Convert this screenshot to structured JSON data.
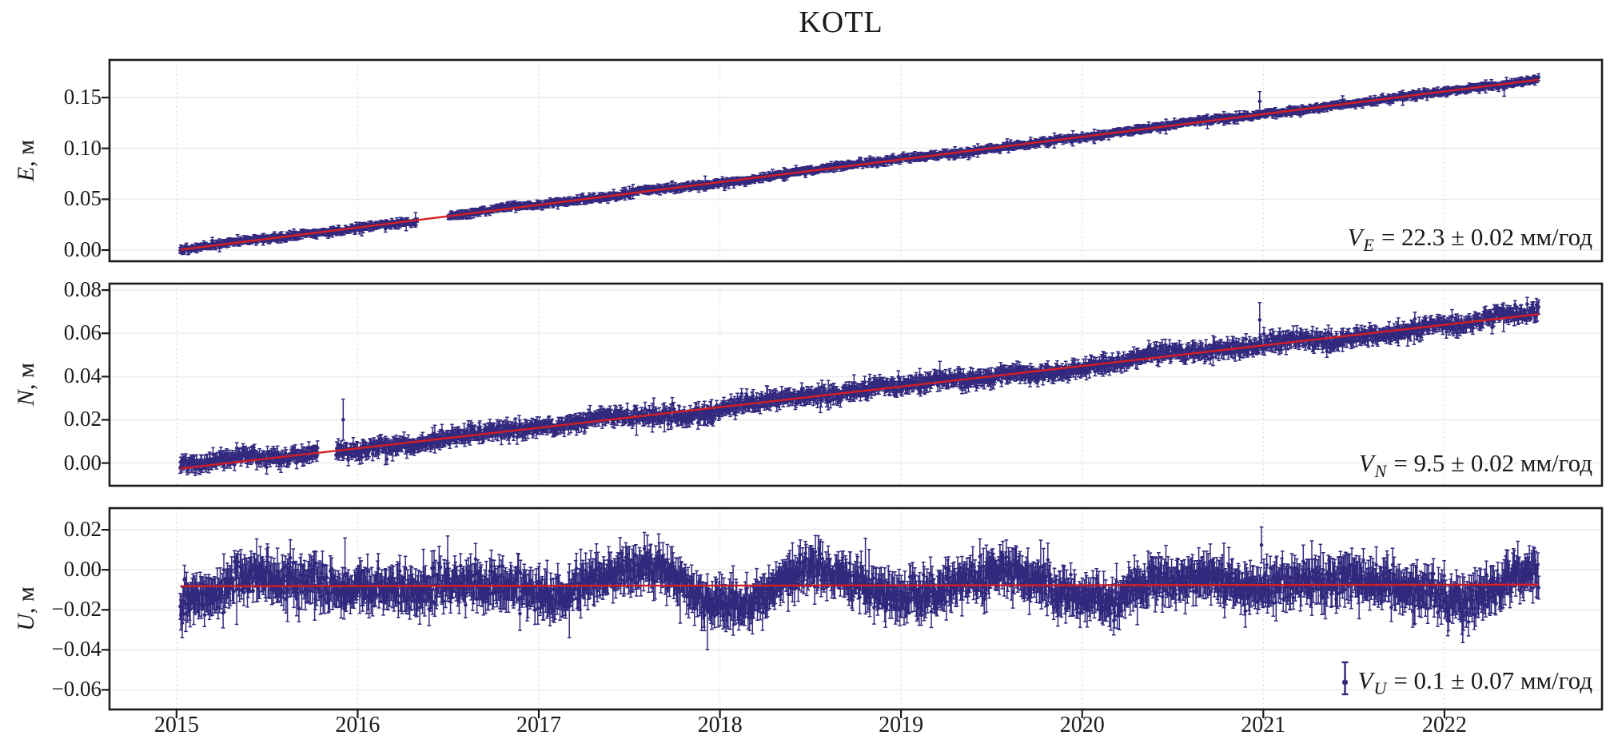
{
  "title": "KOTL",
  "colors": {
    "point": "#32297e",
    "trend": "#d51d22",
    "grid_h": "#ececec",
    "grid_v": "#dedede",
    "axis": "#1b1b1b",
    "text": "#1a1a1a"
  },
  "x_axis": {
    "xlim": [
      2014.63,
      2022.87
    ],
    "ticks": [
      2015,
      2016,
      2017,
      2018,
      2019,
      2020,
      2021,
      2022
    ],
    "tick_labels": [
      "2015",
      "2016",
      "2017",
      "2018",
      "2019",
      "2020",
      "2021",
      "2022"
    ],
    "data_start": 2015.02,
    "data_end": 2022.52,
    "n_points": 1900
  },
  "chart_data": [
    {
      "type": "scatter",
      "name": "E",
      "ylabel_var": "E",
      "ylabel_rest": ", м",
      "ylim": [
        -0.011,
        0.187
      ],
      "yticks": [
        0.0,
        0.05,
        0.1,
        0.15
      ],
      "ytick_labels": [
        "0.00",
        "0.05",
        "0.10",
        "0.15"
      ],
      "annotation": {
        "var": "V",
        "sub": "E",
        "rest": "= 22.3 ± 0.02 мм/год"
      },
      "velocity_mm_per_yr": 22.3,
      "velocity_err_mm_per_yr": 0.02,
      "trend": {
        "t0": 2015.02,
        "v0": 0.0003,
        "t1": 2022.52,
        "v1": 0.1676
      },
      "noise_sd": 0.0013,
      "wander_amp": 0.0013,
      "seasonal_amp": 0.0007,
      "seasonal_phase": 0.45,
      "error_bar": 0.0028,
      "gaps": [
        [
          2016.33,
          2016.5
        ]
      ],
      "outliers": [
        {
          "t": 2020.98,
          "v_off": 0.013,
          "err": 0.0095
        },
        {
          "t": 2022.33,
          "v_off": -0.0045,
          "err": 0.0075
        }
      ],
      "seed": 101,
      "legend_marker": false
    },
    {
      "type": "scatter",
      "name": "N",
      "ylabel_var": "N",
      "ylabel_rest": ", м",
      "ylim": [
        -0.0105,
        0.083
      ],
      "yticks": [
        0.0,
        0.02,
        0.04,
        0.06,
        0.08
      ],
      "ytick_labels": [
        "0.00",
        "0.02",
        "0.04",
        "0.06",
        "0.08"
      ],
      "annotation": {
        "var": "V",
        "sub": "N",
        "rest": "= 9.5 ± 0.02 мм/год"
      },
      "velocity_mm_per_yr": 9.5,
      "velocity_err_mm_per_yr": 0.02,
      "trend": {
        "t0": 2015.02,
        "v0": -0.0025,
        "t1": 2022.52,
        "v1": 0.0689
      },
      "noise_sd": 0.0016,
      "wander_amp": 0.002,
      "seasonal_amp": 0.0009,
      "seasonal_phase": 0.1,
      "error_bar": 0.0026,
      "gaps": [
        [
          2015.78,
          2015.88
        ]
      ],
      "outliers": [
        {
          "t": 2015.92,
          "v_off": 0.014,
          "err": 0.0095
        },
        {
          "t": 2020.98,
          "v_off": 0.012,
          "err": 0.008
        }
      ],
      "seed": 202,
      "legend_marker": false
    },
    {
      "type": "scatter",
      "name": "U",
      "ylabel_var": "U",
      "ylabel_rest": ", м",
      "ylim": [
        -0.0698,
        0.0308
      ],
      "yticks": [
        0.02,
        0.0,
        -0.02,
        -0.04,
        -0.06
      ],
      "ytick_labels": [
        "0.02",
        "0.00",
        "−0.02",
        "−0.04",
        "−0.06"
      ],
      "annotation": {
        "var": "V",
        "sub": "U",
        "rest": "= 0.1 ± 0.07 мм/год"
      },
      "velocity_mm_per_yr": 0.1,
      "velocity_err_mm_per_yr": 0.07,
      "trend": {
        "t0": 2015.02,
        "v0": -0.0082,
        "t1": 2022.52,
        "v1": -0.00745
      },
      "noise_sd": 0.0042,
      "wander_amp": 0.0035,
      "seasonal_amp": 0.0085,
      "seasonal_phase": 0.3,
      "error_bar": 0.0072,
      "gaps": [],
      "outliers": [
        {
          "t": 2015.93,
          "v_off": 0.006,
          "err": 0.018
        },
        {
          "t": 2020.99,
          "v_off": 0.02,
          "err": 0.009
        }
      ],
      "seed": 303,
      "legend_marker": true
    }
  ]
}
